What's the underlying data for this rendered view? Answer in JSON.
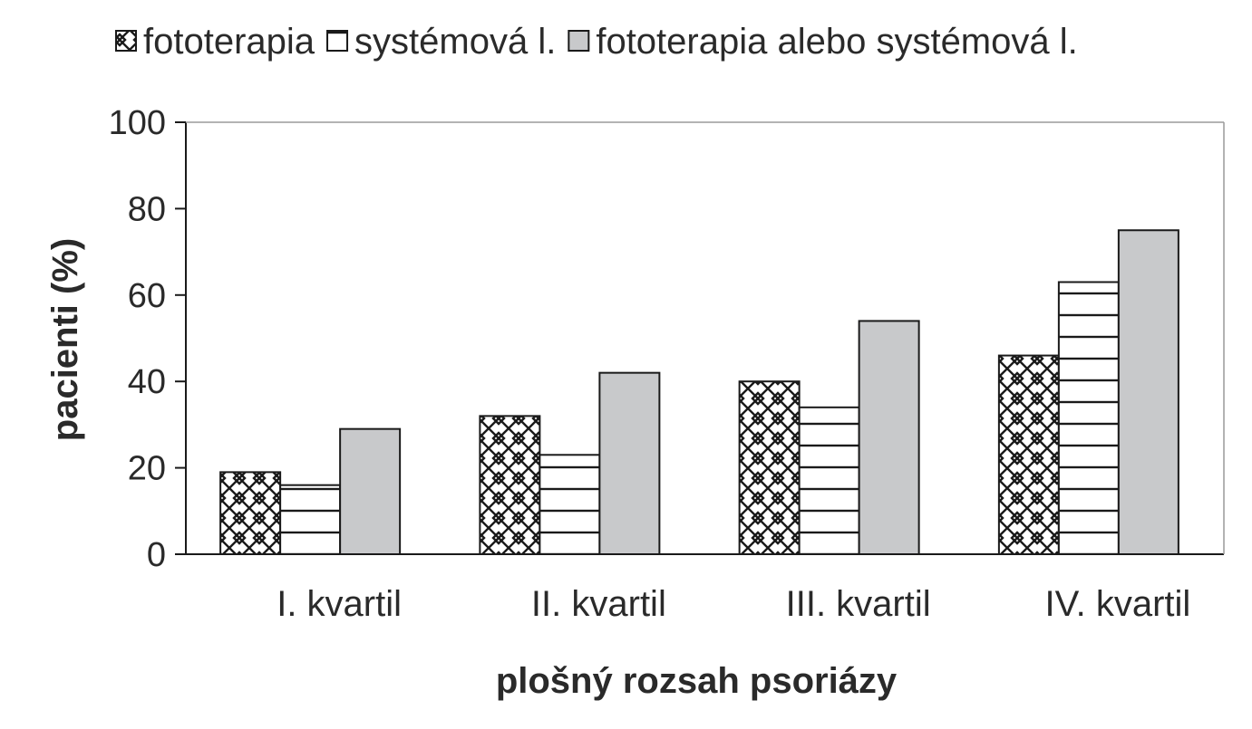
{
  "chart_data": {
    "type": "bar",
    "title": "",
    "xlabel": "plošný rozsah psoriázy",
    "ylabel": "pacienti (%)",
    "ylim": [
      0,
      100
    ],
    "yticks": [
      "0",
      "20",
      "40",
      "60",
      "80",
      "100"
    ],
    "grid": false,
    "legend_position": "top",
    "categories": [
      "I. kvartil",
      "II. kvartil",
      "III. kvartil",
      "IV. kvartil"
    ],
    "series": [
      {
        "name": "fototerapia",
        "pattern": "crosshatch",
        "color": "#ffffff",
        "values": [
          19,
          32,
          40,
          46
        ]
      },
      {
        "name": "systémová l.",
        "pattern": "horizontal-lines",
        "color": "#ffffff",
        "values": [
          16,
          23,
          34,
          63
        ]
      },
      {
        "name": "fototerapia alebo systémová l.",
        "pattern": "solid",
        "color": "#c8c9cb",
        "values": [
          29,
          42,
          54,
          75
        ]
      }
    ]
  }
}
